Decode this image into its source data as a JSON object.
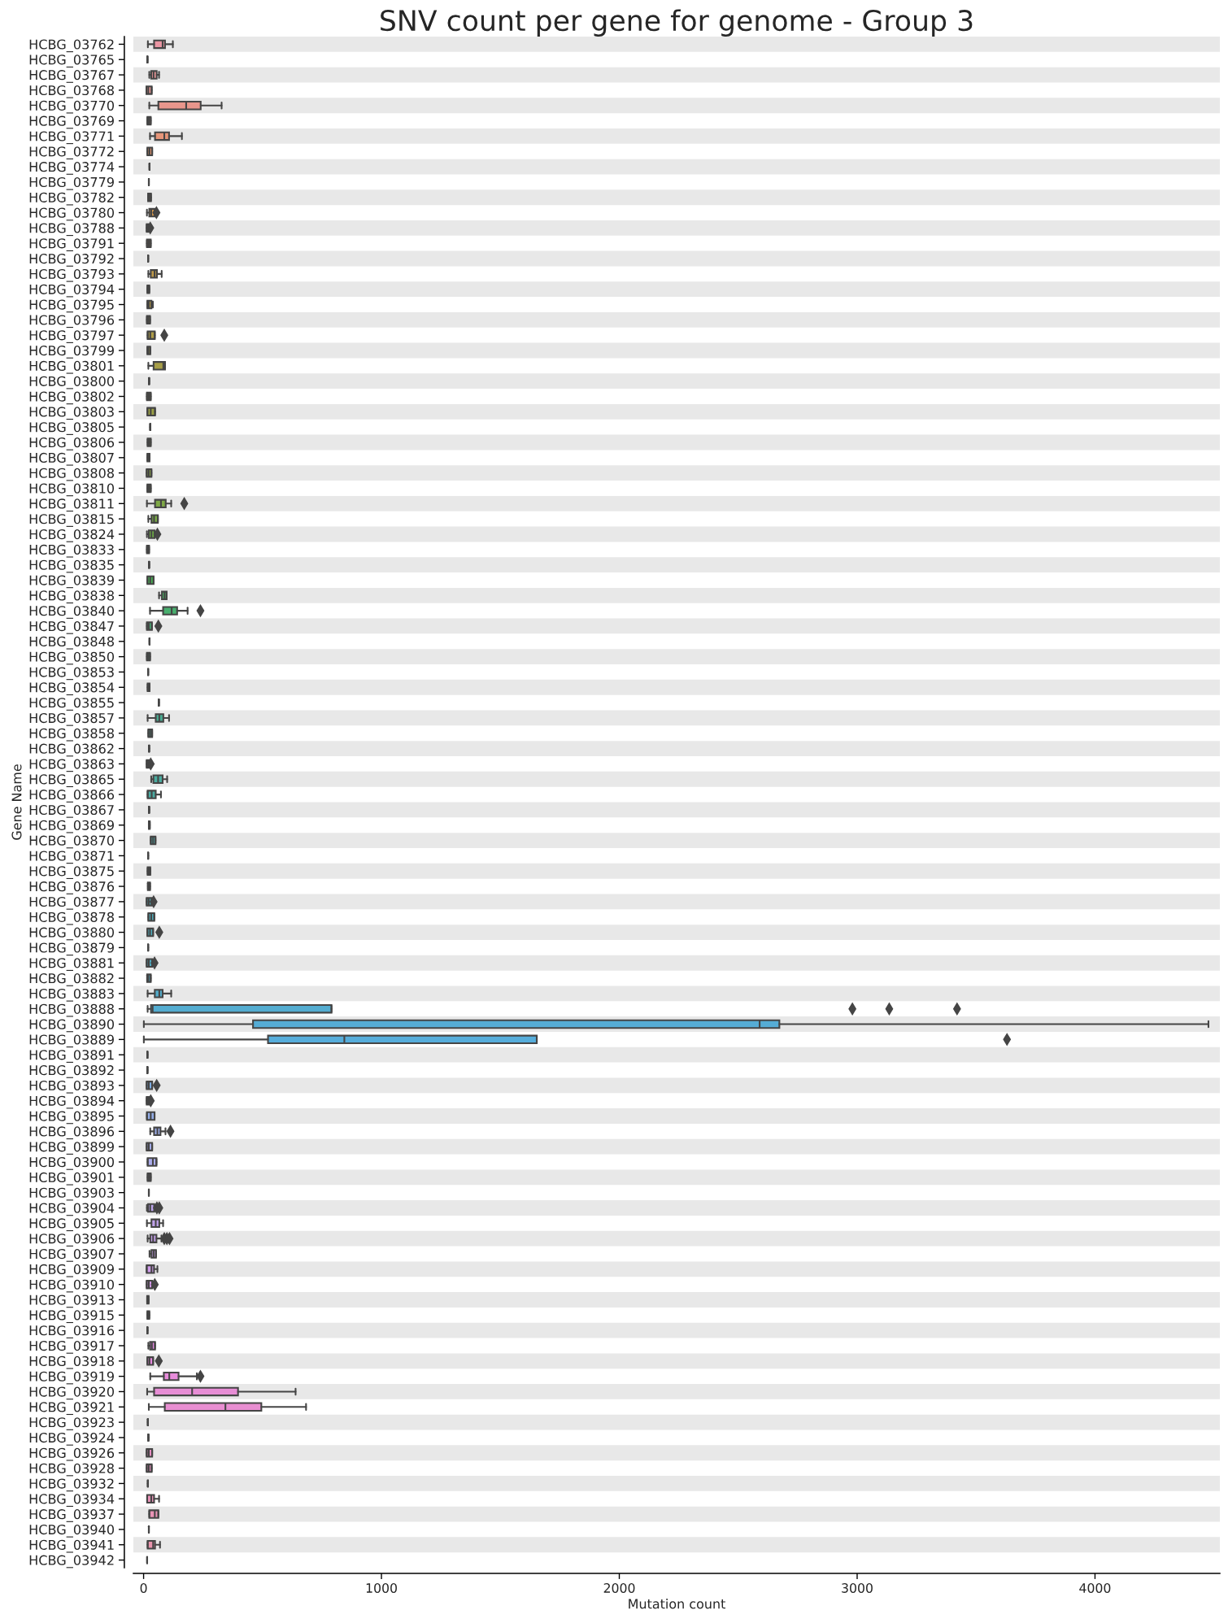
{
  "chart_data": {
    "type": "box",
    "title": "SNV count per gene for genome - Group 3",
    "xlabel": "Mutation count",
    "ylabel": "Gene Name",
    "orientation": "horizontal",
    "marker": "diamond",
    "categories": [
      "HCBG_03762",
      "HCBG_03765",
      "HCBG_03767",
      "HCBG_03768",
      "HCBG_03770",
      "HCBG_03769",
      "HCBG_03771",
      "HCBG_03772",
      "HCBG_03774",
      "HCBG_03779",
      "HCBG_03782",
      "HCBG_03780",
      "HCBG_03788",
      "HCBG_03791",
      "HCBG_03792",
      "HCBG_03793",
      "HCBG_03794",
      "HCBG_03795",
      "HCBG_03796",
      "HCBG_03797",
      "HCBG_03799",
      "HCBG_03801",
      "HCBG_03800",
      "HCBG_03802",
      "HCBG_03803",
      "HCBG_03805",
      "HCBG_03806",
      "HCBG_03807",
      "HCBG_03808",
      "HCBG_03810",
      "HCBG_03811",
      "HCBG_03815",
      "HCBG_03824",
      "HCBG_03833",
      "HCBG_03835",
      "HCBG_03839",
      "HCBG_03838",
      "HCBG_03840",
      "HCBG_03847",
      "HCBG_03848",
      "HCBG_03850",
      "HCBG_03853",
      "HCBG_03854",
      "HCBG_03855",
      "HCBG_03857",
      "HCBG_03858",
      "HCBG_03862",
      "HCBG_03863",
      "HCBG_03865",
      "HCBG_03866",
      "HCBG_03867",
      "HCBG_03869",
      "HCBG_03870",
      "HCBG_03871",
      "HCBG_03875",
      "HCBG_03876",
      "HCBG_03877",
      "HCBG_03878",
      "HCBG_03880",
      "HCBG_03879",
      "HCBG_03881",
      "HCBG_03882",
      "HCBG_03883",
      "HCBG_03888",
      "HCBG_03890",
      "HCBG_03889",
      "HCBG_03891",
      "HCBG_03892",
      "HCBG_03893",
      "HCBG_03894",
      "HCBG_03895",
      "HCBG_03896",
      "HCBG_03899",
      "HCBG_03900",
      "HCBG_03901",
      "HCBG_03903",
      "HCBG_03904",
      "HCBG_03905",
      "HCBG_03906",
      "HCBG_03907",
      "HCBG_03909",
      "HCBG_03910",
      "HCBG_03913",
      "HCBG_03915",
      "HCBG_03916",
      "HCBG_03917",
      "HCBG_03918",
      "HCBG_03919",
      "HCBG_03920",
      "HCBG_03921",
      "HCBG_03923",
      "HCBG_03924",
      "HCBG_03926",
      "HCBG_03928",
      "HCBG_03932",
      "HCBG_03934",
      "HCBG_03937",
      "HCBG_03940",
      "HCBG_03941",
      "HCBG_03942"
    ],
    "boxes": [
      {
        "low": 18,
        "q1": 44,
        "median": 80,
        "q3": 90,
        "high": 123
      },
      {
        "low": 16,
        "q1": 16,
        "median": 16,
        "q3": 16,
        "high": 16
      },
      {
        "low": 24,
        "q1": 32,
        "median": 42,
        "q3": 55,
        "high": 65
      },
      {
        "low": 12,
        "q1": 12,
        "median": 20,
        "q3": 34,
        "high": 34
      },
      {
        "low": 24,
        "q1": 62,
        "median": 179,
        "q3": 240,
        "high": 328
      },
      {
        "low": 16,
        "q1": 16,
        "median": 22,
        "q3": 30,
        "high": 30
      },
      {
        "low": 27,
        "q1": 48,
        "median": 87,
        "q3": 107,
        "high": 161
      },
      {
        "low": 16,
        "q1": 16,
        "median": 25,
        "q3": 36,
        "high": 36
      },
      {
        "low": 25,
        "q1": 25,
        "median": 25,
        "q3": 25,
        "high": 25
      },
      {
        "low": 22,
        "q1": 22,
        "median": 22,
        "q3": 22,
        "high": 22
      },
      {
        "low": 19,
        "q1": 19,
        "median": 25,
        "q3": 31,
        "high": 31
      },
      {
        "low": 14,
        "q1": 24,
        "median": 32,
        "q3": 46,
        "high": 46,
        "outliers": [
          54
        ]
      },
      {
        "low": 13,
        "q1": 13,
        "median": 16,
        "q3": 20,
        "high": 20,
        "outliers": [
          28
        ]
      },
      {
        "low": 14,
        "q1": 14,
        "median": 22,
        "q3": 30,
        "high": 30
      },
      {
        "low": 19,
        "q1": 19,
        "median": 19,
        "q3": 19,
        "high": 19
      },
      {
        "low": 20,
        "q1": 30,
        "median": 46,
        "q3": 56,
        "high": 76
      },
      {
        "low": 16,
        "q1": 16,
        "median": 20,
        "q3": 24,
        "high": 24
      },
      {
        "low": 16,
        "q1": 16,
        "median": 22,
        "q3": 33,
        "high": 39
      },
      {
        "low": 14,
        "q1": 14,
        "median": 20,
        "q3": 27,
        "high": 27
      },
      {
        "low": 17,
        "q1": 17,
        "median": 28,
        "q3": 47,
        "high": 47,
        "outliers": [
          87
        ]
      },
      {
        "low": 16,
        "q1": 16,
        "median": 20,
        "q3": 28,
        "high": 28
      },
      {
        "low": 20,
        "q1": 42,
        "median": 83,
        "q3": 90,
        "high": 90
      },
      {
        "low": 23,
        "q1": 23,
        "median": 23,
        "q3": 23,
        "high": 23
      },
      {
        "low": 14,
        "q1": 14,
        "median": 22,
        "q3": 30,
        "high": 30
      },
      {
        "low": 16,
        "q1": 16,
        "median": 30,
        "q3": 48,
        "high": 48
      },
      {
        "low": 28,
        "q1": 28,
        "median": 28,
        "q3": 28,
        "high": 28
      },
      {
        "low": 17,
        "q1": 17,
        "median": 22,
        "q3": 30,
        "high": 30
      },
      {
        "low": 16,
        "q1": 16,
        "median": 20,
        "q3": 25,
        "high": 25
      },
      {
        "low": 13,
        "q1": 13,
        "median": 22,
        "q3": 33,
        "high": 33
      },
      {
        "low": 16,
        "q1": 16,
        "median": 22,
        "q3": 30,
        "high": 30
      },
      {
        "low": 14,
        "q1": 48,
        "median": 73,
        "q3": 93,
        "high": 116,
        "outliers": [
          171
        ]
      },
      {
        "low": 20,
        "q1": 33,
        "median": 44,
        "q3": 60,
        "high": 60
      },
      {
        "low": 14,
        "q1": 22,
        "median": 33,
        "q3": 46,
        "high": 46,
        "outliers": [
          58
        ]
      },
      {
        "low": 14,
        "q1": 14,
        "median": 18,
        "q3": 23,
        "high": 23
      },
      {
        "low": 23,
        "q1": 23,
        "median": 23,
        "q3": 23,
        "high": 23
      },
      {
        "low": 16,
        "q1": 16,
        "median": 28,
        "q3": 42,
        "high": 42
      },
      {
        "low": 65,
        "q1": 77,
        "median": 88,
        "q3": 97,
        "high": 97
      },
      {
        "low": 27,
        "q1": 82,
        "median": 118,
        "q3": 141,
        "high": 185,
        "outliers": [
          239
        ]
      },
      {
        "low": 14,
        "q1": 14,
        "median": 22,
        "q3": 35,
        "high": 35,
        "outliers": [
          62
        ]
      },
      {
        "low": 25,
        "q1": 25,
        "median": 25,
        "q3": 25,
        "high": 25
      },
      {
        "low": 14,
        "q1": 14,
        "median": 20,
        "q3": 27,
        "high": 27
      },
      {
        "low": 19,
        "q1": 19,
        "median": 19,
        "q3": 19,
        "high": 19
      },
      {
        "low": 17,
        "q1": 17,
        "median": 21,
        "q3": 25,
        "high": 25
      },
      {
        "low": 64,
        "q1": 64,
        "median": 64,
        "q3": 64,
        "high": 64
      },
      {
        "low": 17,
        "q1": 51,
        "median": 66,
        "q3": 83,
        "high": 107
      },
      {
        "low": 20,
        "q1": 20,
        "median": 28,
        "q3": 36,
        "high": 36
      },
      {
        "low": 23,
        "q1": 23,
        "median": 23,
        "q3": 23,
        "high": 23
      },
      {
        "low": 13,
        "q1": 13,
        "median": 17,
        "q3": 24,
        "high": 24,
        "outliers": [
          30
        ]
      },
      {
        "low": 32,
        "q1": 41,
        "median": 61,
        "q3": 80,
        "high": 99
      },
      {
        "low": 17,
        "q1": 17,
        "median": 34,
        "q3": 51,
        "high": 73
      },
      {
        "low": 23,
        "q1": 23,
        "median": 23,
        "q3": 23,
        "high": 23
      },
      {
        "low": 22,
        "q1": 22,
        "median": 24,
        "q3": 26,
        "high": 26
      },
      {
        "low": 30,
        "q1": 30,
        "median": 40,
        "q3": 50,
        "high": 50
      },
      {
        "low": 19,
        "q1": 19,
        "median": 19,
        "q3": 19,
        "high": 19
      },
      {
        "low": 17,
        "q1": 17,
        "median": 22,
        "q3": 28,
        "high": 28
      },
      {
        "low": 18,
        "q1": 18,
        "median": 22,
        "q3": 27,
        "high": 27
      },
      {
        "low": 13,
        "q1": 13,
        "median": 22,
        "q3": 34,
        "high": 34,
        "outliers": [
          42
        ]
      },
      {
        "low": 20,
        "q1": 20,
        "median": 32,
        "q3": 45,
        "high": 45
      },
      {
        "low": 16,
        "q1": 16,
        "median": 27,
        "q3": 40,
        "high": 40,
        "outliers": [
          66
        ]
      },
      {
        "low": 19,
        "q1": 19,
        "median": 19,
        "q3": 19,
        "high": 19
      },
      {
        "low": 13,
        "q1": 13,
        "median": 22,
        "q3": 36,
        "high": 36,
        "outliers": [
          46
        ]
      },
      {
        "low": 15,
        "q1": 15,
        "median": 20,
        "q3": 30,
        "high": 30
      },
      {
        "low": 17,
        "q1": 47,
        "median": 66,
        "q3": 80,
        "high": 116
      },
      {
        "low": 17,
        "q1": 31,
        "median": 38,
        "q3": 790,
        "high": 790,
        "outliers": [
          2980,
          3135,
          3420
        ]
      },
      {
        "low": 1,
        "q1": 460,
        "median": 2590,
        "q3": 2673,
        "high": 4477
      },
      {
        "low": 1,
        "q1": 523,
        "median": 844,
        "q3": 1653,
        "high": 1653,
        "outliers": [
          3630
        ]
      },
      {
        "low": 16,
        "q1": 16,
        "median": 16,
        "q3": 16,
        "high": 16
      },
      {
        "low": 16,
        "q1": 16,
        "median": 16,
        "q3": 16,
        "high": 16
      },
      {
        "low": 13,
        "q1": 13,
        "median": 22,
        "q3": 36,
        "high": 36,
        "outliers": [
          55
        ]
      },
      {
        "low": 13,
        "q1": 13,
        "median": 16,
        "q3": 22,
        "high": 22,
        "outliers": [
          30
        ]
      },
      {
        "low": 14,
        "q1": 14,
        "median": 30,
        "q3": 46,
        "high": 46
      },
      {
        "low": 28,
        "q1": 44,
        "median": 58,
        "q3": 71,
        "high": 92,
        "outliers": [
          113
        ]
      },
      {
        "low": 13,
        "q1": 13,
        "median": 22,
        "q3": 36,
        "high": 36
      },
      {
        "low": 17,
        "q1": 17,
        "median": 39,
        "q3": 54,
        "high": 54
      },
      {
        "low": 17,
        "q1": 17,
        "median": 23,
        "q3": 30,
        "high": 30
      },
      {
        "low": 22,
        "q1": 22,
        "median": 22,
        "q3": 22,
        "high": 22
      },
      {
        "low": 14,
        "q1": 19,
        "median": 28,
        "q3": 45,
        "high": 45,
        "outliers": [
          56,
          66
        ]
      },
      {
        "low": 14,
        "q1": 33,
        "median": 51,
        "q3": 66,
        "high": 82
      },
      {
        "low": 17,
        "q1": 28,
        "median": 40,
        "q3": 54,
        "high": 75,
        "outliers": [
          87,
          98,
          109
        ]
      },
      {
        "low": 25,
        "q1": 33,
        "median": 42,
        "q3": 52,
        "high": 52
      },
      {
        "low": 13,
        "q1": 13,
        "median": 33,
        "q3": 44,
        "high": 58
      },
      {
        "low": 13,
        "q1": 13,
        "median": 22,
        "q3": 36,
        "high": 36,
        "outliers": [
          47
        ]
      },
      {
        "low": 15,
        "q1": 15,
        "median": 17,
        "q3": 21,
        "high": 21
      },
      {
        "low": 16,
        "q1": 16,
        "median": 20,
        "q3": 24,
        "high": 24
      },
      {
        "low": 16,
        "q1": 16,
        "median": 16,
        "q3": 16,
        "high": 16
      },
      {
        "low": 20,
        "q1": 27,
        "median": 35,
        "q3": 48,
        "high": 48
      },
      {
        "low": 16,
        "q1": 16,
        "median": 25,
        "q3": 40,
        "high": 40,
        "outliers": [
          64
        ]
      },
      {
        "low": 28,
        "q1": 85,
        "median": 108,
        "q3": 147,
        "high": 224,
        "outliers": [
          239
        ]
      },
      {
        "low": 15,
        "q1": 44,
        "median": 204,
        "q3": 397,
        "high": 639
      },
      {
        "low": 22,
        "q1": 89,
        "median": 344,
        "q3": 495,
        "high": 683
      },
      {
        "low": 18,
        "q1": 18,
        "median": 18,
        "q3": 18,
        "high": 18
      },
      {
        "low": 20,
        "q1": 20,
        "median": 20,
        "q3": 20,
        "high": 20
      },
      {
        "low": 13,
        "q1": 13,
        "median": 22,
        "q3": 36,
        "high": 36
      },
      {
        "low": 13,
        "q1": 13,
        "median": 22,
        "q3": 34,
        "high": 34
      },
      {
        "low": 18,
        "q1": 18,
        "median": 18,
        "q3": 18,
        "high": 18
      },
      {
        "low": 15,
        "q1": 15,
        "median": 32,
        "q3": 44,
        "high": 65
      },
      {
        "low": 24,
        "q1": 24,
        "median": 47,
        "q3": 62,
        "high": 62
      },
      {
        "low": 22,
        "q1": 22,
        "median": 22,
        "q3": 22,
        "high": 22
      },
      {
        "low": 17,
        "q1": 17,
        "median": 40,
        "q3": 48,
        "high": 69
      },
      {
        "low": 15,
        "q1": 15,
        "median": 15,
        "q3": 15,
        "high": 15
      }
    ],
    "colors": [
      "#ea96a3",
      "#454545",
      "#ea9799",
      "#e99793",
      "#e8968c",
      "#e79683",
      "#e69579",
      "#e4946c",
      "#454545",
      "#454545",
      "#d7944e",
      "#d2964d",
      "#cd974c",
      "#c8984b",
      "#454545",
      "#bf9a4a",
      "#bb9b49",
      "#b79c49",
      "#b39d48",
      "#af9d48",
      "#ab9e47",
      "#a79e47",
      "#454545",
      "#9fa045",
      "#9ca146",
      "#454545",
      "#94a346",
      "#8fa546",
      "#8ba646",
      "#85a746",
      "#7fa946",
      "#78aa47",
      "#6fac47",
      "#64ae47",
      "#454545",
      "#48b052",
      "#48b062",
      "#48af6e",
      "#49af76",
      "#454545",
      "#49ae83",
      "#454545",
      "#4aad8c",
      "#454545",
      "#4aad93",
      "#4aad96",
      "#454545",
      "#4aac9c",
      "#4bac9f",
      "#4baba2",
      "#454545",
      "#4baba7",
      "#4baba9",
      "#454545",
      "#4cabaf",
      "#4dabb2",
      "#4eabb5",
      "#4eabb8",
      "#4fabbb",
      "#454545",
      "#50acc3",
      "#51acc7",
      "#52accb",
      "#53acd0",
      "#55acd5",
      "#56addb",
      "#454545",
      "#454545",
      "#7faee5",
      "#8baee7",
      "#94aee8",
      "#9cade9",
      "#a4acea",
      "#abaceb",
      "#b1aaeb",
      "#454545",
      "#bba5ea",
      "#c0a3ea",
      "#c5a1ea",
      "#c99ee9",
      "#ce9be9",
      "#d398e8",
      "#d894e8",
      "#dd91e7",
      "#454545",
      "#e689e4",
      "#e78adf",
      "#e78cda",
      "#e78dd5",
      "#e88ed1",
      "#454545",
      "#454545",
      "#e890c4",
      "#e891c0",
      "#454545",
      "#e993b9",
      "#e993b5",
      "#454545",
      "#e994ad",
      "#454545"
    ],
    "xlim": [
      -43,
      4525
    ],
    "xticks": [
      0,
      1000,
      2000,
      3000,
      4000
    ],
    "bands": [
      {
        "axis": "y",
        "from": "HCBG_03762",
        "to": "HCBG_03762",
        "color": "#e8e8e8"
      },
      {
        "axis": "y",
        "from": "HCBG_03767",
        "to": "HCBG_03767",
        "color": "#e8e8e8"
      },
      {
        "axis": "y",
        "from": "HCBG_03770",
        "to": "HCBG_03770",
        "color": "#e8e8e8"
      },
      {
        "axis": "y",
        "from": "HCBG_03771",
        "to": "HCBG_03771",
        "color": "#e8e8e8"
      },
      {
        "axis": "y",
        "from": "HCBG_03774",
        "to": "HCBG_03774",
        "color": "#e8e8e8"
      },
      {
        "axis": "y",
        "from": "HCBG_03782",
        "to": "HCBG_03782",
        "color": "#e8e8e8"
      },
      {
        "axis": "y",
        "from": "HCBG_03788",
        "to": "HCBG_03788",
        "color": "#e8e8e8"
      },
      {
        "axis": "y",
        "from": "HCBG_03792",
        "to": "HCBG_03792",
        "color": "#e8e8e8"
      },
      {
        "axis": "y",
        "from": "HCBG_03794",
        "to": "HCBG_03794",
        "color": "#e8e8e8"
      },
      {
        "axis": "y",
        "from": "HCBG_03796",
        "to": "HCBG_03796",
        "color": "#e8e8e8"
      },
      {
        "axis": "y",
        "from": "HCBG_03799",
        "to": "HCBG_03799",
        "color": "#e8e8e8"
      },
      {
        "axis": "y",
        "from": "HCBG_03800",
        "to": "HCBG_03800",
        "color": "#e8e8e8"
      },
      {
        "axis": "y",
        "from": "HCBG_03803",
        "to": "HCBG_03803",
        "color": "#e8e8e8"
      },
      {
        "axis": "y",
        "from": "HCBG_03806",
        "to": "HCBG_03806",
        "color": "#e8e8e8"
      },
      {
        "axis": "y",
        "from": "HCBG_03808",
        "to": "HCBG_03808",
        "color": "#e8e8e8"
      },
      {
        "axis": "y",
        "from": "HCBG_03811",
        "to": "HCBG_03811",
        "color": "#e8e8e8"
      },
      {
        "axis": "y",
        "from": "HCBG_03824",
        "to": "HCBG_03824",
        "color": "#e8e8e8"
      },
      {
        "axis": "y",
        "from": "HCBG_03835",
        "to": "HCBG_03835",
        "color": "#e8e8e8"
      },
      {
        "axis": "y",
        "from": "HCBG_03838",
        "to": "HCBG_03838",
        "color": "#e8e8e8"
      },
      {
        "axis": "y",
        "from": "HCBG_03847",
        "to": "HCBG_03847",
        "color": "#e8e8e8"
      },
      {
        "axis": "y",
        "from": "HCBG_03850",
        "to": "HCBG_03850",
        "color": "#e8e8e8"
      },
      {
        "axis": "y",
        "from": "HCBG_03854",
        "to": "HCBG_03854",
        "color": "#e8e8e8"
      },
      {
        "axis": "y",
        "from": "HCBG_03857",
        "to": "HCBG_03857",
        "color": "#e8e8e8"
      },
      {
        "axis": "y",
        "from": "HCBG_03862",
        "to": "HCBG_03862",
        "color": "#e8e8e8"
      },
      {
        "axis": "y",
        "from": "HCBG_03865",
        "to": "HCBG_03865",
        "color": "#e8e8e8"
      },
      {
        "axis": "y",
        "from": "HCBG_03867",
        "to": "HCBG_03867",
        "color": "#e8e8e8"
      },
      {
        "axis": "y",
        "from": "HCBG_03870",
        "to": "HCBG_03870",
        "color": "#e8e8e8"
      },
      {
        "axis": "y",
        "from": "HCBG_03875",
        "to": "HCBG_03875",
        "color": "#e8e8e8"
      },
      {
        "axis": "y",
        "from": "HCBG_03877",
        "to": "HCBG_03877",
        "color": "#e8e8e8"
      },
      {
        "axis": "y",
        "from": "HCBG_03880",
        "to": "HCBG_03880",
        "color": "#e8e8e8"
      },
      {
        "axis": "y",
        "from": "HCBG_03881",
        "to": "HCBG_03881",
        "color": "#e8e8e8"
      },
      {
        "axis": "y",
        "from": "HCBG_03883",
        "to": "HCBG_03883",
        "color": "#e8e8e8"
      },
      {
        "axis": "y",
        "from": "HCBG_03890",
        "to": "HCBG_03890",
        "color": "#e8e8e8"
      },
      {
        "axis": "y",
        "from": "HCBG_03891",
        "to": "HCBG_03891",
        "color": "#e8e8e8"
      },
      {
        "axis": "y",
        "from": "HCBG_03893",
        "to": "HCBG_03893",
        "color": "#e8e8e8"
      },
      {
        "axis": "y",
        "from": "HCBG_03895",
        "to": "HCBG_03895",
        "color": "#e8e8e8"
      },
      {
        "axis": "y",
        "from": "HCBG_03899",
        "to": "HCBG_03899",
        "color": "#e8e8e8"
      },
      {
        "axis": "y",
        "from": "HCBG_03901",
        "to": "HCBG_03901",
        "color": "#e8e8e8"
      },
      {
        "axis": "y",
        "from": "HCBG_03904",
        "to": "HCBG_03904",
        "color": "#e8e8e8"
      },
      {
        "axis": "y",
        "from": "HCBG_03906",
        "to": "HCBG_03906",
        "color": "#e8e8e8"
      },
      {
        "axis": "y",
        "from": "HCBG_03909",
        "to": "HCBG_03909",
        "color": "#e8e8e8"
      },
      {
        "axis": "y",
        "from": "HCBG_03913",
        "to": "HCBG_03913",
        "color": "#e8e8e8"
      },
      {
        "axis": "y",
        "from": "HCBG_03916",
        "to": "HCBG_03916",
        "color": "#e8e8e8"
      },
      {
        "axis": "y",
        "from": "HCBG_03918",
        "to": "HCBG_03918",
        "color": "#e8e8e8"
      },
      {
        "axis": "y",
        "from": "HCBG_03920",
        "to": "HCBG_03920",
        "color": "#e8e8e8"
      },
      {
        "axis": "y",
        "from": "HCBG_03923",
        "to": "HCBG_03923",
        "color": "#e8e8e8"
      },
      {
        "axis": "y",
        "from": "HCBG_03926",
        "to": "HCBG_03926",
        "color": "#e8e8e8"
      },
      {
        "axis": "y",
        "from": "HCBG_03932",
        "to": "HCBG_03932",
        "color": "#e8e8e8"
      },
      {
        "axis": "y",
        "from": "HCBG_03937",
        "to": "HCBG_03937",
        "color": "#e8e8e8"
      },
      {
        "axis": "y",
        "from": "HCBG_03941",
        "to": "HCBG_03941",
        "color": "#e8e8e8"
      }
    ]
  }
}
